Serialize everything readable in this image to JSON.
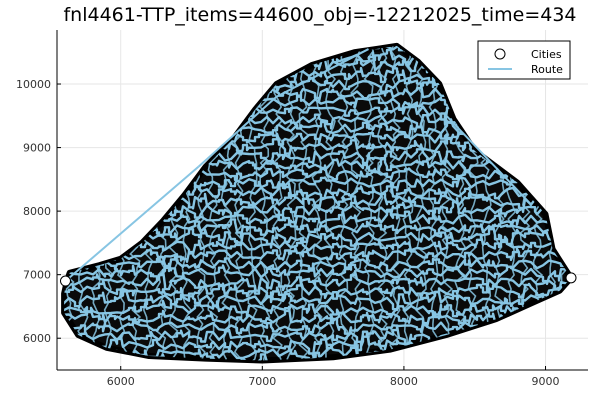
{
  "chart_data": {
    "type": "scatter",
    "title": "fnl4461-TTP_items=44600_obj=-12212025_time=434",
    "xlabel": "",
    "ylabel": "",
    "xlim": [
      5550,
      9300
    ],
    "ylim": [
      5500,
      10850
    ],
    "x_ticks": [
      6000,
      7000,
      8000,
      9000
    ],
    "y_ticks": [
      6000,
      7000,
      8000,
      9000,
      10000
    ],
    "grid": true,
    "legend_position": "top-right",
    "series": [
      {
        "name": "Cities",
        "kind": "scatter",
        "marker": "circle",
        "color": "#000000",
        "highlighted_points": [
          {
            "x": 5610,
            "y": 6900
          },
          {
            "x": 9180,
            "y": 6950
          }
        ]
      },
      {
        "name": "Route",
        "kind": "line",
        "color": "#87c5e3"
      }
    ],
    "region_outline": [
      [
        5620,
        6900
      ],
      [
        5640,
        7030
      ],
      [
        5850,
        7150
      ],
      [
        6000,
        7250
      ],
      [
        6150,
        7500
      ],
      [
        6300,
        7850
      ],
      [
        6450,
        8250
      ],
      [
        6600,
        8700
      ],
      [
        6800,
        9150
      ],
      [
        6950,
        9600
      ],
      [
        7100,
        10000
      ],
      [
        7350,
        10300
      ],
      [
        7650,
        10500
      ],
      [
        7950,
        10600
      ],
      [
        8100,
        10350
      ],
      [
        8250,
        10000
      ],
      [
        8350,
        9450
      ],
      [
        8500,
        8950
      ],
      [
        8800,
        8450
      ],
      [
        9000,
        7950
      ],
      [
        9050,
        7400
      ],
      [
        9150,
        7050
      ],
      [
        9180,
        6950
      ],
      [
        9100,
        6750
      ],
      [
        8900,
        6550
      ],
      [
        8650,
        6300
      ],
      [
        8300,
        6050
      ],
      [
        7900,
        5820
      ],
      [
        7500,
        5700
      ],
      [
        7000,
        5650
      ],
      [
        6600,
        5680
      ],
      [
        6200,
        5720
      ],
      [
        5900,
        5850
      ],
      [
        5700,
        6050
      ],
      [
        5600,
        6400
      ],
      [
        5600,
        6700
      ]
    ],
    "route_long_segments": [
      [
        [
          5610,
          6900
        ],
        [
          6550,
          8700
        ]
      ],
      [
        [
          6550,
          8700
        ],
        [
          7100,
          9800
        ]
      ],
      [
        [
          7100,
          9800
        ],
        [
          7750,
          10550
        ]
      ],
      [
        [
          8300,
          9500
        ],
        [
          8900,
          8100
        ]
      ]
    ]
  }
}
